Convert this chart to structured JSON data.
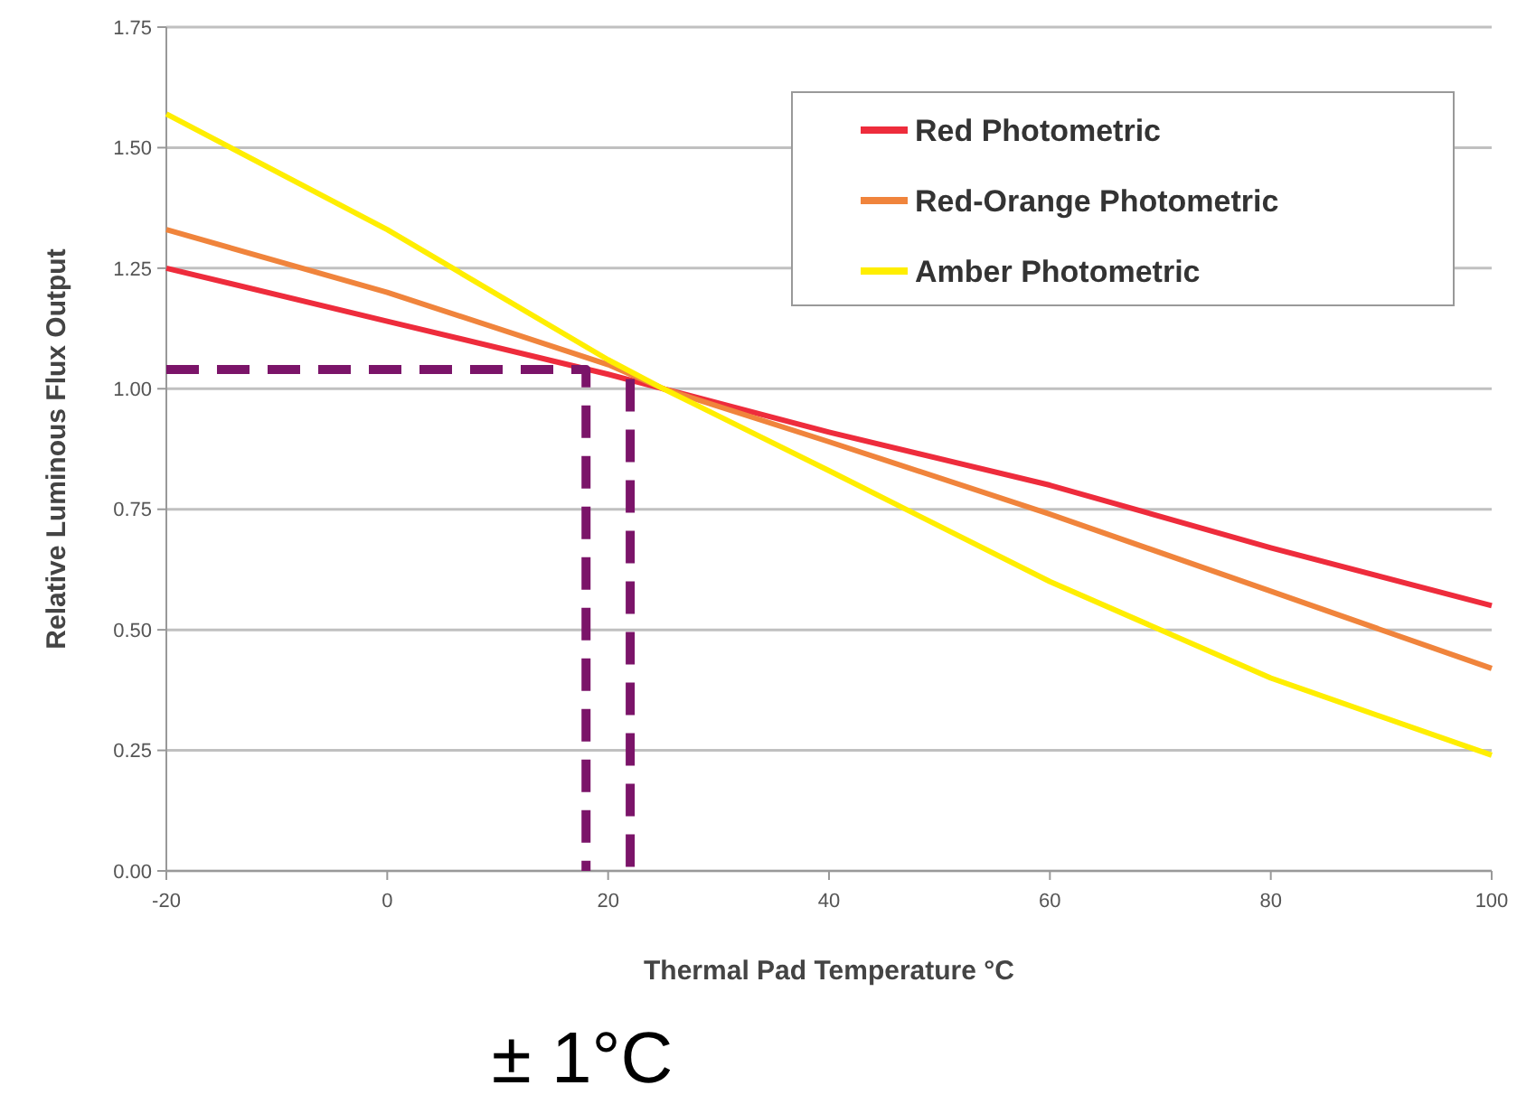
{
  "chart_data": {
    "type": "line",
    "xlabel": "Thermal Pad Temperature °C",
    "ylabel": "Relative Luminous Flux Output",
    "xlim": [
      -20,
      100
    ],
    "xticks": [
      -20,
      0,
      20,
      40,
      60,
      80,
      100
    ],
    "ylim": [
      0,
      1.75
    ],
    "yticks": [
      {
        "value": 0,
        "label": "0.00"
      },
      {
        "value": 0.25,
        "label": "0.25"
      },
      {
        "value": 0.5,
        "label": "0.50"
      },
      {
        "value": 0.75,
        "label": "0.75"
      },
      {
        "value": 1,
        "label": "1.00"
      },
      {
        "value": 1.25,
        "label": "1.25"
      },
      {
        "value": 1.5,
        "label": "1.50"
      },
      {
        "value": 1.75,
        "label": "1.75"
      }
    ],
    "grid": "y",
    "legend": "top right",
    "marker": "none",
    "series": [
      {
        "name": "Red Photometric",
        "color": "#ee2c3c",
        "x": [
          -20,
          0,
          20,
          25,
          40,
          60,
          80,
          100
        ],
        "values": [
          1.25,
          1.14,
          1.03,
          1.0,
          0.91,
          0.8,
          0.67,
          0.55
        ]
      },
      {
        "name": "Red-Orange Photometric",
        "color": "#f0843c",
        "x": [
          -20,
          0,
          20,
          25,
          40,
          60,
          80,
          100
        ],
        "values": [
          1.33,
          1.2,
          1.05,
          1.0,
          0.89,
          0.74,
          0.58,
          0.42
        ]
      },
      {
        "name": "Amber Photometric",
        "color": "#ffee00",
        "x": [
          -20,
          0,
          20,
          25,
          40,
          60,
          80,
          100
        ],
        "values": [
          1.57,
          1.33,
          1.06,
          1.0,
          0.83,
          0.6,
          0.4,
          0.24
        ]
      },
      {
        "type": "line",
        "color": "#7b1469",
        "line_style": "dashed",
        "x": [
          -20,
          18,
          18
        ],
        "values": [
          1.04,
          1.04,
          0
        ]
      },
      {
        "type": "line",
        "color": "#7b1469",
        "line_style": "dashed",
        "x": [
          22,
          22
        ],
        "values": [
          1.02,
          0
        ]
      }
    ],
    "annotations": [
      "± 1°C"
    ]
  }
}
